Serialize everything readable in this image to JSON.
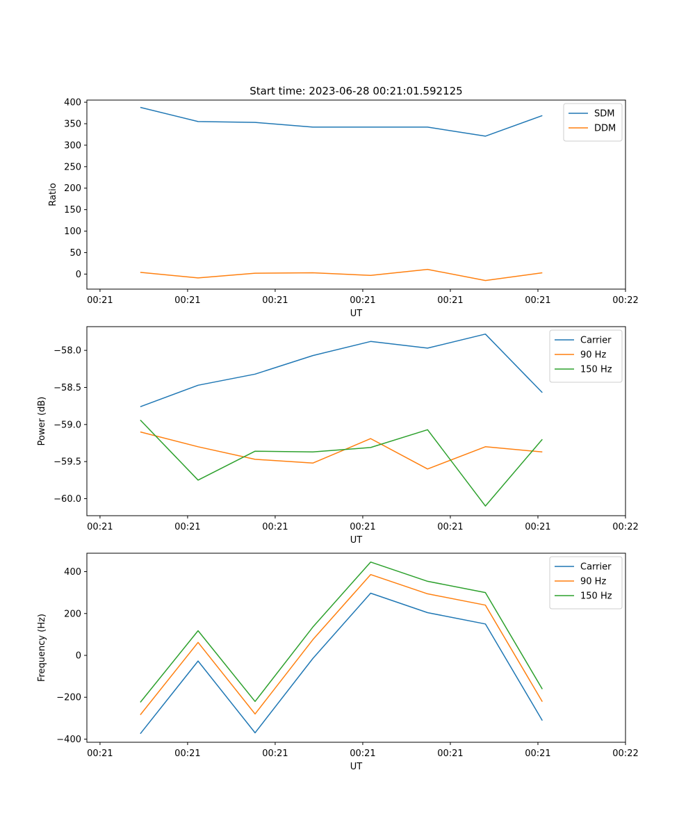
{
  "figure": {
    "title": "Start time: 2023-06-28 00:21:01.592125"
  },
  "chart_data": [
    {
      "type": "line",
      "title": "Start time: 2023-06-28 00:21:01.592125",
      "xlabel": "UT",
      "ylabel": "Ratio",
      "x_tick_labels": [
        "00:21",
        "00:21",
        "00:21",
        "00:21",
        "00:21",
        "00:21",
        "00:22"
      ],
      "x_tick_values": [
        0,
        1,
        2,
        3,
        4,
        5,
        6
      ],
      "xlim": [
        -0.15,
        6.0
      ],
      "ylim": [
        -35,
        405
      ],
      "y_ticks": [
        0,
        50,
        100,
        150,
        200,
        250,
        300,
        350,
        400
      ],
      "y_tick_labels": [
        "0",
        "50",
        "100",
        "150",
        "200",
        "250",
        "300",
        "350",
        "400"
      ],
      "grid": false,
      "legend_position": "upper right",
      "series": [
        {
          "name": "SDM",
          "color": "#1f77b4",
          "x": [
            0.46,
            1.12,
            1.77,
            2.43,
            3.09,
            3.74,
            4.4,
            5.05
          ],
          "y": [
            388,
            355,
            353,
            342,
            342,
            342,
            321,
            369
          ]
        },
        {
          "name": "DDM",
          "color": "#ff7f0e",
          "x": [
            0.46,
            1.12,
            1.77,
            2.43,
            3.09,
            3.74,
            4.4,
            5.05
          ],
          "y": [
            4,
            -9,
            2,
            3,
            -3,
            11,
            -15,
            3
          ]
        }
      ]
    },
    {
      "type": "line",
      "xlabel": "UT",
      "ylabel": "Power (dB)",
      "x_tick_labels": [
        "00:21",
        "00:21",
        "00:21",
        "00:21",
        "00:21",
        "00:21",
        "00:22"
      ],
      "x_tick_values": [
        0,
        1,
        2,
        3,
        4,
        5,
        6
      ],
      "xlim": [
        -0.15,
        6.0
      ],
      "ylim": [
        -60.23,
        -57.68
      ],
      "y_ticks": [
        -60.0,
        -59.5,
        -59.0,
        -58.5,
        -58.0
      ],
      "y_tick_labels": [
        "−60.0",
        "−59.5",
        "−59.0",
        "−58.5",
        "−58.0"
      ],
      "grid": false,
      "legend_position": "upper right",
      "series": [
        {
          "name": "Carrier",
          "color": "#1f77b4",
          "x": [
            0.46,
            1.12,
            1.77,
            2.43,
            3.09,
            3.74,
            4.4,
            5.05
          ],
          "y": [
            -58.76,
            -58.47,
            -58.32,
            -58.07,
            -57.88,
            -57.97,
            -57.78,
            -58.57
          ]
        },
        {
          "name": "90 Hz",
          "color": "#ff7f0e",
          "x": [
            0.46,
            1.12,
            1.77,
            2.43,
            3.09,
            3.74,
            4.4,
            5.05
          ],
          "y": [
            -59.1,
            -59.3,
            -59.47,
            -59.52,
            -59.19,
            -59.6,
            -59.3,
            -59.37
          ]
        },
        {
          "name": "150 Hz",
          "color": "#2ca02c",
          "x": [
            0.46,
            1.12,
            1.77,
            2.43,
            3.09,
            3.74,
            4.4,
            5.05
          ],
          "y": [
            -58.94,
            -59.75,
            -59.36,
            -59.37,
            -59.31,
            -59.07,
            -60.1,
            -59.2
          ]
        }
      ]
    },
    {
      "type": "line",
      "xlabel": "UT",
      "ylabel": "Frequency (Hz)",
      "x_tick_labels": [
        "00:21",
        "00:21",
        "00:21",
        "00:21",
        "00:21",
        "00:21",
        "00:22"
      ],
      "x_tick_values": [
        0,
        1,
        2,
        3,
        4,
        5,
        6
      ],
      "xlim": [
        -0.15,
        6.0
      ],
      "ylim": [
        -415,
        488
      ],
      "y_ticks": [
        -400,
        -200,
        0,
        200,
        400
      ],
      "y_tick_labels": [
        "−400",
        "−200",
        "0",
        "200",
        "400"
      ],
      "grid": false,
      "legend_position": "upper right",
      "series": [
        {
          "name": "Carrier",
          "color": "#1f77b4",
          "x": [
            0.46,
            1.12,
            1.77,
            2.43,
            3.09,
            3.74,
            4.4,
            5.05
          ],
          "y": [
            -374,
            -27,
            -370,
            -15,
            297,
            204,
            150,
            -311
          ]
        },
        {
          "name": "90 Hz",
          "color": "#ff7f0e",
          "x": [
            0.46,
            1.12,
            1.77,
            2.43,
            3.09,
            3.74,
            4.4,
            5.05
          ],
          "y": [
            -284,
            62,
            -280,
            75,
            386,
            294,
            240,
            -221
          ]
        },
        {
          "name": "150 Hz",
          "color": "#2ca02c",
          "x": [
            0.46,
            1.12,
            1.77,
            2.43,
            3.09,
            3.74,
            4.4,
            5.05
          ],
          "y": [
            -224,
            118,
            -220,
            135,
            446,
            354,
            300,
            -161
          ]
        }
      ]
    }
  ]
}
